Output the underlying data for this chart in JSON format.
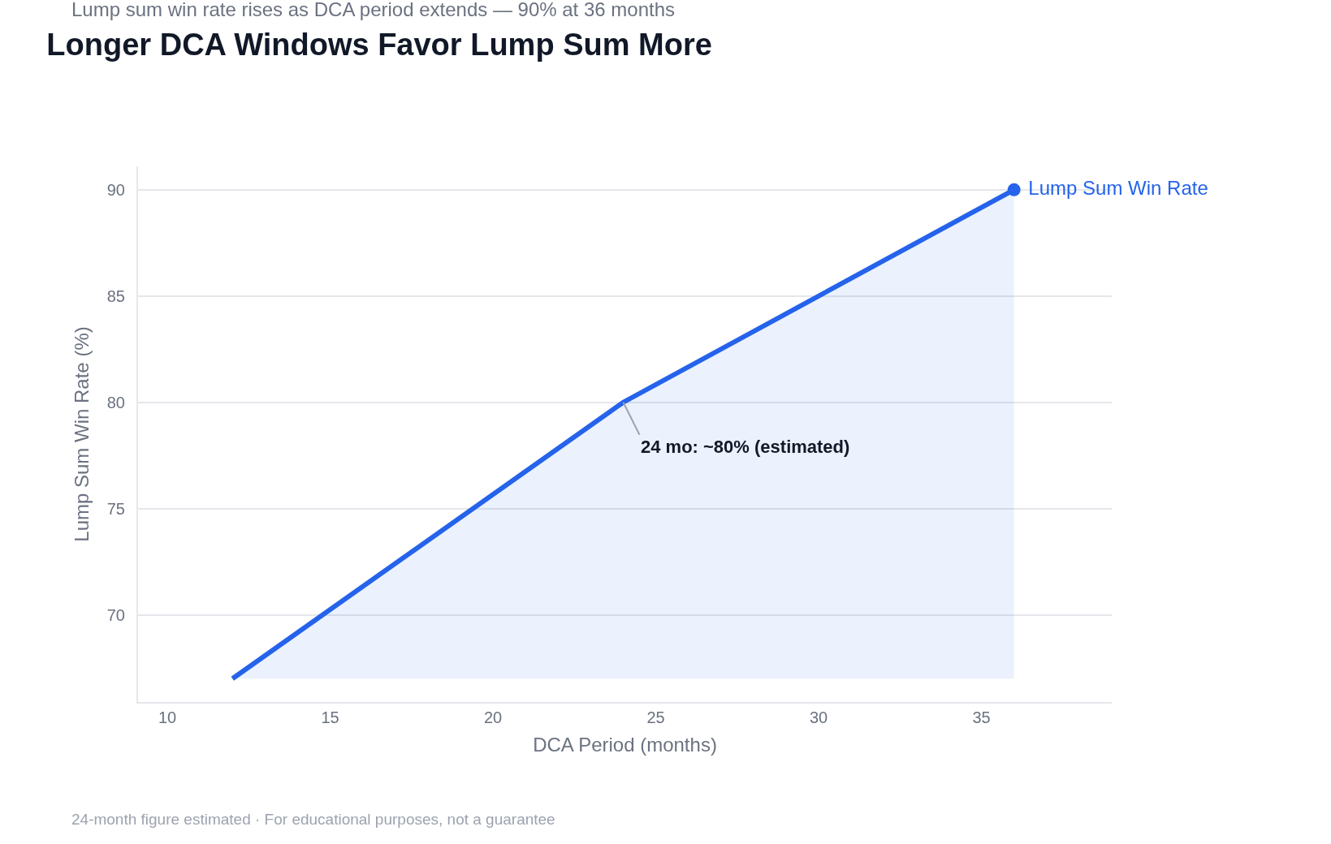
{
  "chart_data": {
    "type": "area",
    "title": "Longer DCA Windows Favor Lump Sum More",
    "subtitle": "Lump sum win rate rises as DCA period extends — 90% at 36 months",
    "xlabel": "DCA Period (months)",
    "ylabel": "Lump Sum Win Rate (%)",
    "x": [
      12,
      24,
      36
    ],
    "series": [
      {
        "name": "Lump Sum Win Rate",
        "color": "#2563eb",
        "values": [
          67,
          80,
          90
        ]
      }
    ],
    "xlim": [
      9.1,
      39
    ],
    "xticks": [
      10,
      15,
      20,
      25,
      30,
      35
    ],
    "ylim": [
      65.9,
      91.1
    ],
    "yticks": [
      70,
      75,
      80,
      85,
      90
    ],
    "grid": "y",
    "legend": false,
    "annotations": [
      {
        "text": "24 mo: ~80% (estimated)",
        "x": 24,
        "y": 80
      },
      "24-month figure estimated · For educational purposes, not a guarantee"
    ]
  }
}
